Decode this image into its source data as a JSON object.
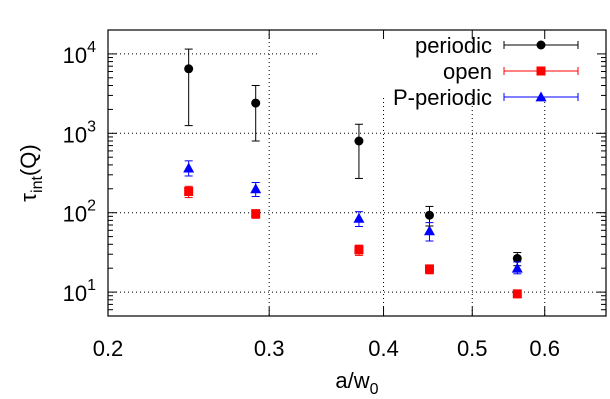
{
  "chart_data": {
    "type": "scatter",
    "x_scale": "log",
    "y_scale": "log",
    "xlabel": "a/w",
    "xlabel_sub": "0",
    "ylabel": "τ",
    "ylabel_sub": "int",
    "ylabel_suffix": "(Q)",
    "xlim": [
      0.2,
      0.7
    ],
    "ylim": [
      5,
      20000
    ],
    "x_ticks": [
      {
        "value": 0.2,
        "label": "0.2"
      },
      {
        "value": 0.3,
        "label": "0.3"
      },
      {
        "value": 0.4,
        "label": "0.4"
      },
      {
        "value": 0.5,
        "label": "0.5"
      },
      {
        "value": 0.6,
        "label": "0.6"
      }
    ],
    "y_ticks": [
      {
        "value": 10,
        "base": "10",
        "exp": "1"
      },
      {
        "value": 100,
        "base": "10",
        "exp": "2"
      },
      {
        "value": 1000,
        "base": "10",
        "exp": "3"
      },
      {
        "value": 10000,
        "base": "10",
        "exp": "4"
      }
    ],
    "grid": true,
    "legend_position": "top-right",
    "series": [
      {
        "name": "periodic",
        "color": "#000000",
        "marker": "circle",
        "points": [
          {
            "x": 0.245,
            "y": 6500,
            "lo": 1250,
            "hi": 11500
          },
          {
            "x": 0.29,
            "y": 2400,
            "lo": 800,
            "hi": 4000
          },
          {
            "x": 0.376,
            "y": 800,
            "lo": 270,
            "hi": 1300
          },
          {
            "x": 0.449,
            "y": 93,
            "lo": 68,
            "hi": 120
          },
          {
            "x": 0.56,
            "y": 26.5,
            "lo": 21.5,
            "hi": 31.5
          }
        ]
      },
      {
        "name": "open",
        "color": "#ff0000",
        "marker": "square",
        "points": [
          {
            "x": 0.245,
            "y": 185,
            "lo": 155,
            "hi": 215
          },
          {
            "x": 0.29,
            "y": 97,
            "lo": 85,
            "hi": 109
          },
          {
            "x": 0.376,
            "y": 34,
            "lo": 29,
            "hi": 39
          },
          {
            "x": 0.449,
            "y": 19.5,
            "lo": 17,
            "hi": 22
          },
          {
            "x": 0.56,
            "y": 9.5,
            "lo": 8.9,
            "hi": 10.1
          }
        ]
      },
      {
        "name": "P-periodic",
        "color": "#0000ff",
        "marker": "triangle",
        "points": [
          {
            "x": 0.245,
            "y": 365,
            "lo": 290,
            "hi": 450
          },
          {
            "x": 0.29,
            "y": 200,
            "lo": 160,
            "hi": 240
          },
          {
            "x": 0.376,
            "y": 85,
            "lo": 67,
            "hi": 103
          },
          {
            "x": 0.449,
            "y": 59,
            "lo": 44,
            "hi": 75
          },
          {
            "x": 0.56,
            "y": 20,
            "lo": 17,
            "hi": 24
          }
        ]
      }
    ]
  }
}
